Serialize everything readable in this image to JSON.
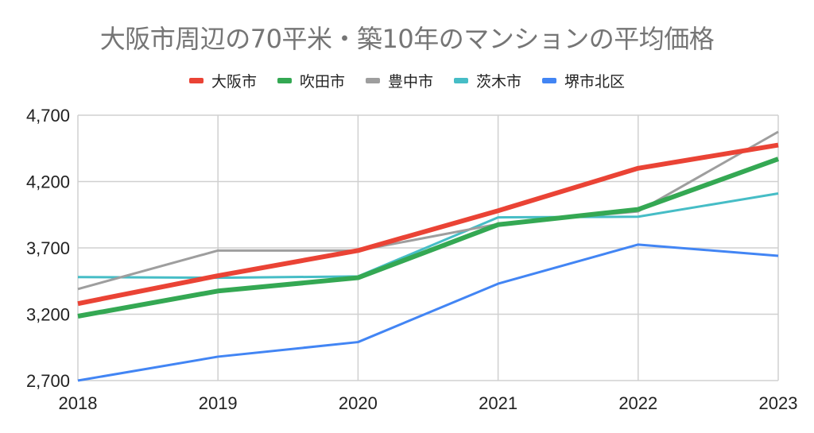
{
  "chart_data": {
    "type": "line",
    "title": "大阪市周辺の70平米・築10年のマンションの平均価格",
    "xlabel": "",
    "ylabel": "",
    "x": [
      "2018",
      "2019",
      "2020",
      "2021",
      "2022",
      "2023"
    ],
    "ylim": [
      2700,
      4700
    ],
    "yticks": [
      2700,
      3200,
      3700,
      4200,
      4700
    ],
    "ytick_labels": [
      "2,700",
      "3,200",
      "3,700",
      "4,200",
      "4,700"
    ],
    "grid": true,
    "legend_position": "top",
    "series": [
      {
        "name": "大阪市",
        "color": "#ea4335",
        "weight": "thick",
        "values": [
          3280,
          3490,
          3680,
          3980,
          4300,
          4475
        ]
      },
      {
        "name": "吹田市",
        "color": "#34a853",
        "weight": "thick",
        "values": [
          3185,
          3375,
          3475,
          3875,
          3990,
          4370
        ]
      },
      {
        "name": "豊中市",
        "color": "#9e9e9e",
        "weight": "normal",
        "values": [
          3390,
          3680,
          3680,
          3880,
          3975,
          4575
        ]
      },
      {
        "name": "茨木市",
        "color": "#46bdc6",
        "weight": "normal",
        "values": [
          3480,
          3475,
          3485,
          3930,
          3935,
          4110
        ]
      },
      {
        "name": "堺市北区",
        "color": "#4285f4",
        "weight": "normal",
        "values": [
          2700,
          2880,
          2990,
          3430,
          3725,
          3640
        ]
      }
    ]
  }
}
